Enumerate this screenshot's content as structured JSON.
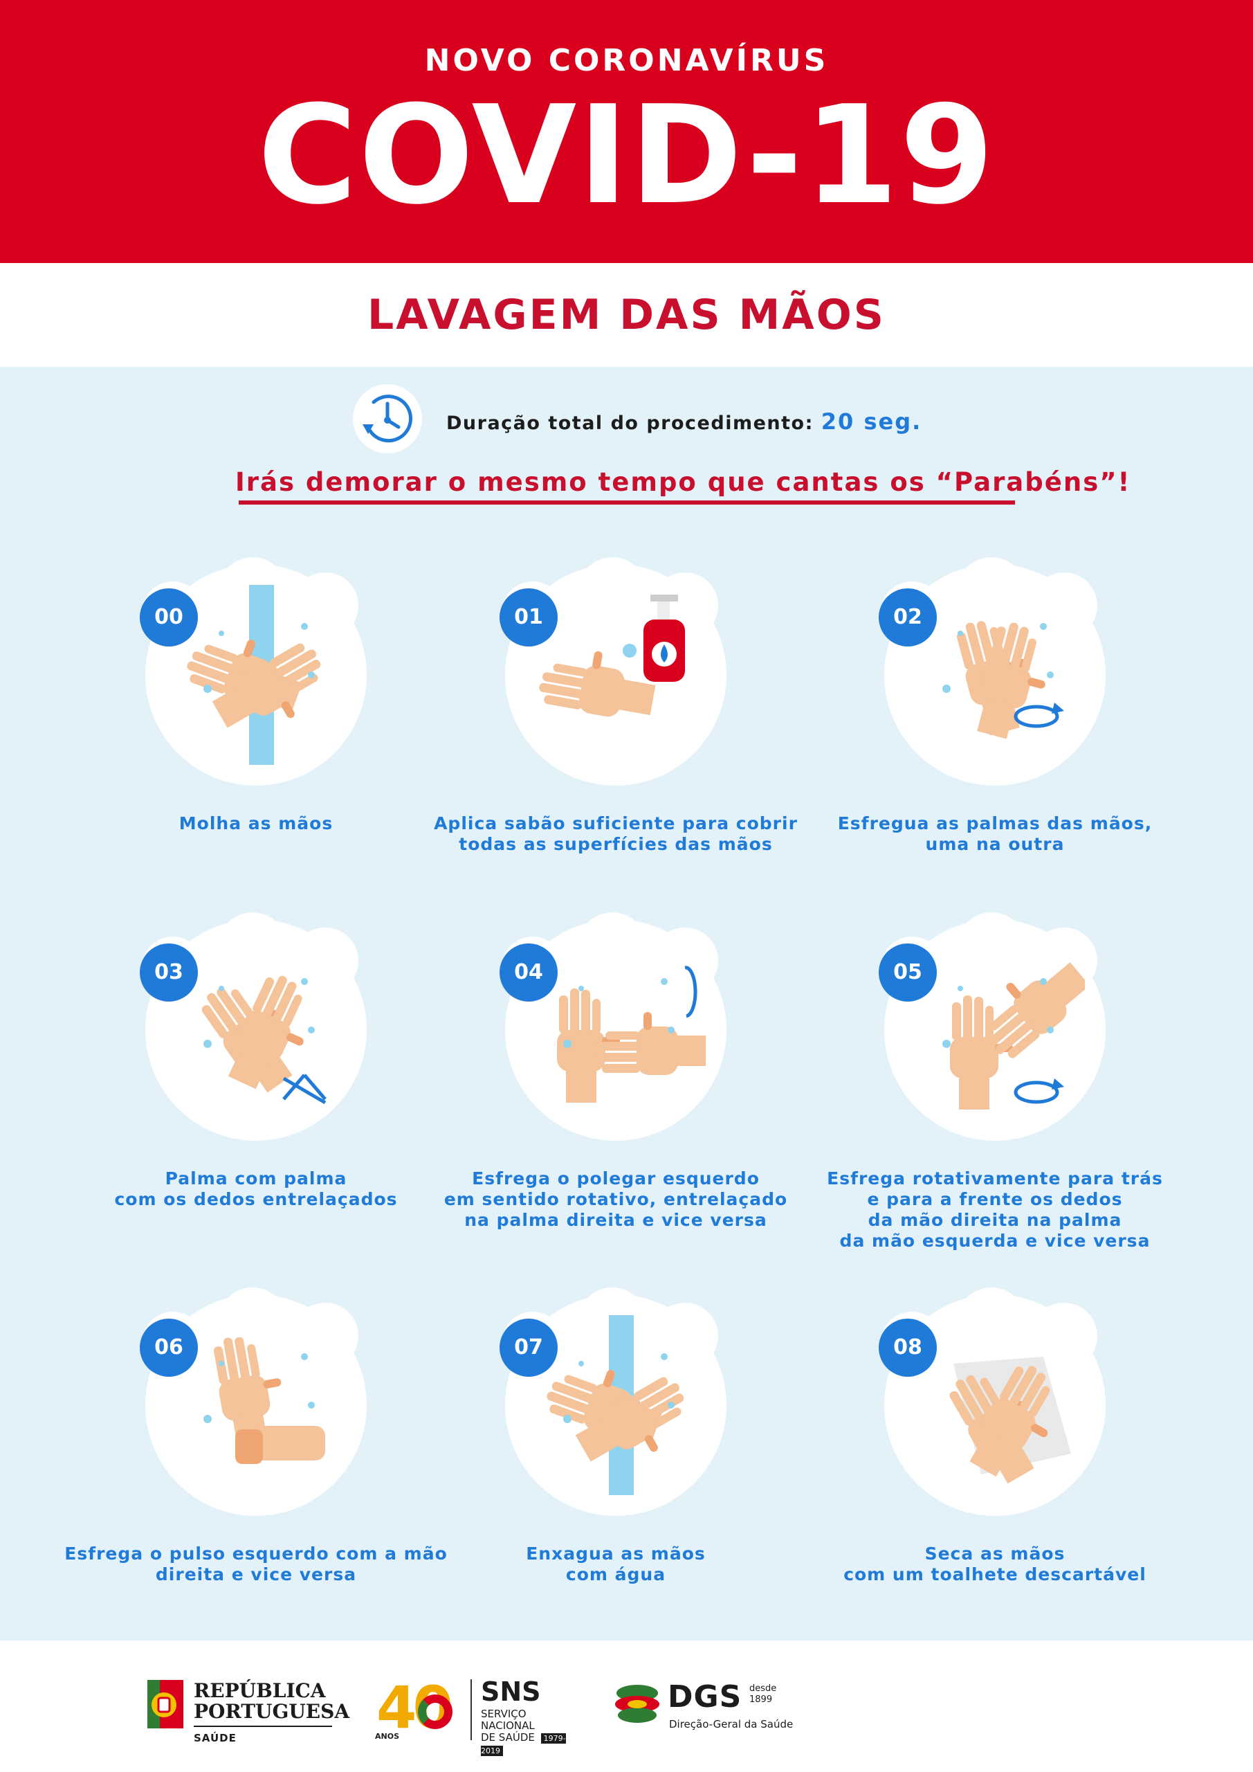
{
  "header": {
    "subtitle": "NOVO CORONAVÍRUS",
    "title": "COVID-19"
  },
  "section_title": "LAVAGEM DAS MÃOS",
  "duration": {
    "label": "Duração total do procedimento:",
    "value": "20 seg."
  },
  "tagline": "Irás demorar o mesmo tempo que cantas os “Parabéns”!",
  "steps": [
    {
      "number": "00",
      "lines": [
        "Molha as mãos"
      ],
      "icon": "wet-hands-icon"
    },
    {
      "number": "01",
      "lines": [
        "Aplica sabão suficiente para cobrir",
        "todas as superfícies das mãos"
      ],
      "icon": "soap-dispenser-icon"
    },
    {
      "number": "02",
      "lines": [
        "Esfregua as palmas das mãos,",
        "uma na outra"
      ],
      "icon": "rub-palms-icon"
    },
    {
      "number": "03",
      "lines": [
        "Palma com palma",
        "com os dedos entrelaçados"
      ],
      "icon": "interlaced-fingers-icon"
    },
    {
      "number": "04",
      "lines": [
        "Esfrega o polegar esquerdo",
        "em sentido rotativo, entrelaçado",
        "na palma direita e vice versa"
      ],
      "icon": "thumb-rub-icon"
    },
    {
      "number": "05",
      "lines": [
        "Esfrega rotativamente para trás",
        "e para a frente os dedos",
        "da mão direita na palma",
        "da mão esquerda e vice versa"
      ],
      "icon": "fingertips-rub-icon"
    },
    {
      "number": "06",
      "lines": [
        "Esfrega o pulso esquerdo com a mão",
        "direita e vice versa"
      ],
      "icon": "wrist-rub-icon"
    },
    {
      "number": "07",
      "lines": [
        "Enxagua as mãos",
        "com água"
      ],
      "icon": "rinse-hands-icon"
    },
    {
      "number": "08",
      "lines": [
        "Seca as mãos",
        "com um toalhete descartável"
      ],
      "icon": "dry-hands-towel-icon"
    }
  ],
  "footer": {
    "republica_line1": "REPÚBLICA",
    "republica_line2": "PORTUGUESA",
    "republica_sub": "SAÚDE",
    "sns_years_label": "ANOS",
    "sns_years_number": "40",
    "sns_title": "SNS",
    "sns_line1": "SERVIÇO NACIONAL",
    "sns_line2": "DE SAÚDE",
    "sns_period": "1979-2019",
    "dgs_title": "DGS",
    "dgs_since_label": "desde",
    "dgs_since_year": "1899",
    "dgs_sub": "Direção-Geral da Saúde"
  },
  "colors": {
    "brand_red": "#d9001e",
    "accent_blue": "#1f7ad8",
    "background_light_blue": "#e3f2f8"
  }
}
